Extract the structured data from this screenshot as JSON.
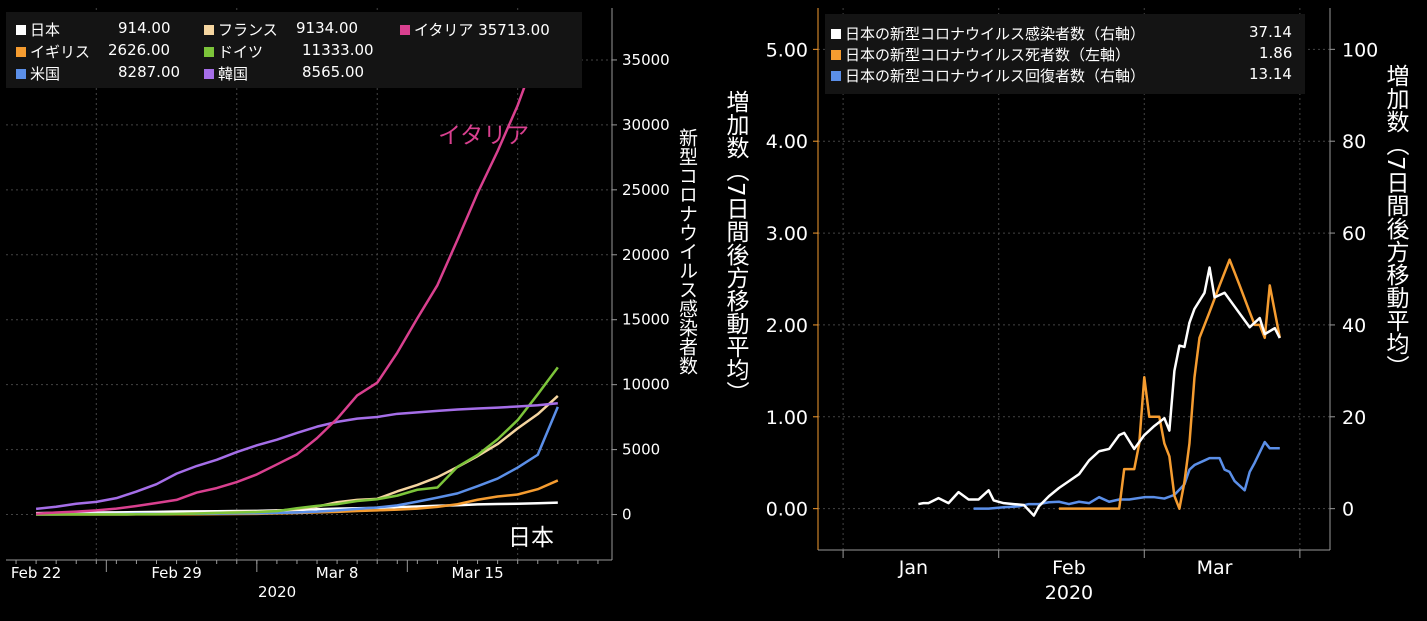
{
  "chart_data": [
    {
      "type": "line",
      "x_axis": {
        "ticks": [
          "Feb 22",
          "Feb 29",
          "Mar 8",
          "Mar 15"
        ],
        "year": "2020"
      },
      "y_axis": {
        "label": "新型コロナウイルス感染者数",
        "ticks": [
          "0",
          "5000",
          "10000",
          "15000",
          "20000",
          "25000",
          "30000",
          "35000"
        ],
        "ylim": [
          -3500,
          39000
        ]
      },
      "xlim": [
        -1.5,
        28.7
      ],
      "legend": [
        {
          "name": "日本",
          "value": "914.00",
          "color": "#ffffff"
        },
        {
          "name": "イギリス",
          "value": "2626.00",
          "color": "#f59c30"
        },
        {
          "name": "米国",
          "value": "8287.00",
          "color": "#5b8fe8"
        },
        {
          "name": "フランス",
          "value": "9134.00",
          "color": "#f5d5a0"
        },
        {
          "name": "ドイツ",
          "value": "11333.00",
          "color": "#7cc43a"
        },
        {
          "name": "韓国",
          "value": "8565.00",
          "color": "#a56ee8"
        },
        {
          "name": "イタリア",
          "value": "35713.00",
          "color": "#d9408f"
        }
      ],
      "annotations": {
        "italy": "イタリア",
        "japan": "日本"
      },
      "series": [
        {
          "name": "日本",
          "color": "#ffffff",
          "values": [
            105,
            132,
            144,
            157,
            164,
            186,
            210,
            230,
            239,
            254,
            268,
            284,
            317,
            349,
            408,
            455,
            488,
            514,
            568,
            620,
            675,
            716,
            780,
            814,
            829,
            873,
            914
          ]
        },
        {
          "name": "イギリス",
          "color": "#f59c30",
          "values": [
            9,
            13,
            13,
            13,
            13,
            13,
            15,
            20,
            23,
            36,
            40,
            51,
            85,
            115,
            163,
            206,
            273,
            321,
            382,
            456,
            590,
            798,
            1140,
            1391,
            1543,
            1950,
            2626
          ]
        },
        {
          "name": "米国",
          "color": "#5b8fe8",
          "values": [
            15,
            15,
            35,
            35,
            35,
            53,
            57,
            60,
            62,
            70,
            88,
            104,
            124,
            158,
            221,
            319,
            435,
            541,
            704,
            994,
            1301,
            1630,
            2183,
            2770,
            3617,
            4604,
            8287
          ]
        },
        {
          "name": "フランス",
          "color": "#f5d5a0",
          "values": [
            12,
            12,
            12,
            12,
            14,
            18,
            38,
            57,
            100,
            130,
            191,
            212,
            285,
            423,
            613,
            949,
            1126,
            1209,
            1784,
            2281,
            2876,
            3661,
            4499,
            5423,
            6633,
            7730,
            9134
          ]
        },
        {
          "name": "ドイツ",
          "color": "#7cc43a",
          "values": [
            16,
            16,
            16,
            16,
            16,
            18,
            26,
            48,
            79,
            130,
            159,
            196,
            262,
            482,
            670,
            799,
            1040,
            1176,
            1457,
            1908,
            2078,
            3675,
            4585,
            5795,
            7272,
            9257,
            11333
          ]
        },
        {
          "name": "韓国",
          "color": "#a56ee8",
          "values": [
            433,
            602,
            833,
            977,
            1261,
            1766,
            2337,
            3150,
            3736,
            4212,
            4812,
            5328,
            5766,
            6284,
            6767,
            7134,
            7382,
            7513,
            7755,
            7869,
            7979,
            8086,
            8162,
            8236,
            8320,
            8413,
            8565
          ]
        },
        {
          "name": "イタリア",
          "color": "#d9408f",
          "values": [
            62,
            155,
            229,
            322,
            453,
            655,
            888,
            1128,
            1694,
            2036,
            2502,
            3089,
            3858,
            4636,
            5883,
            7375,
            9172,
            10149,
            12462,
            15113,
            17660,
            21157,
            24747,
            27980,
            31506,
            35713,
            35713
          ]
        }
      ]
    },
    {
      "type": "line",
      "x_axis": {
        "ticks": [
          "Jan",
          "Feb",
          "Mar"
        ],
        "year": "2020"
      },
      "y_left": {
        "label": "増加数（7日間後方移動平均）",
        "ticks": [
          "0.00",
          "1.00",
          "2.00",
          "3.00",
          "4.00",
          "5.00"
        ],
        "ylim": [
          -0.45,
          5.45
        ],
        "color": "#f59c30"
      },
      "y_right": {
        "label": "増加数（7日間後方移動平均）",
        "ticks": [
          "0",
          "20",
          "40",
          "60",
          "80",
          "100"
        ],
        "ylim": [
          -9,
          109
        ]
      },
      "legend": [
        {
          "name": "日本の新型コロナウイルス感染者数（右軸）",
          "value": "37.14",
          "color": "#ffffff"
        },
        {
          "name": "日本の新型コロナウイルス死者数（左軸）",
          "value": "1.86",
          "color": "#f59c30"
        },
        {
          "name": "日本の新型コロナウイルス回復者数（右軸）",
          "value": "13.14",
          "color": "#5b8fe8"
        }
      ],
      "series": [
        {
          "name": "日本の新型コロナウイルス感染者数（右軸）",
          "axis": "right",
          "color": "#ffffff",
          "points": [
            [
              "2020-01-16",
              1
            ],
            [
              "2020-01-17",
              1.2
            ],
            [
              "2020-01-18",
              1.2
            ],
            [
              "2020-01-20",
              2.3
            ],
            [
              "2020-01-22",
              1.2
            ],
            [
              "2020-01-24",
              3.6
            ],
            [
              "2020-01-26",
              2
            ],
            [
              "2020-01-28",
              2
            ],
            [
              "2020-01-30",
              4
            ],
            [
              "2020-01-31",
              1.8
            ],
            [
              "2020-02-02",
              1.2
            ],
            [
              "2020-02-04",
              1
            ],
            [
              "2020-02-06",
              0.8
            ],
            [
              "2020-02-08",
              -1.5
            ],
            [
              "2020-02-09",
              0.5
            ],
            [
              "2020-02-11",
              2.7
            ],
            [
              "2020-02-13",
              4.5
            ],
            [
              "2020-02-15",
              6
            ],
            [
              "2020-02-17",
              7.5
            ],
            [
              "2020-02-19",
              10.5
            ],
            [
              "2020-02-21",
              12.5
            ],
            [
              "2020-02-23",
              13
            ],
            [
              "2020-02-25",
              16
            ],
            [
              "2020-02-26",
              16.5
            ],
            [
              "2020-02-28",
              13
            ],
            [
              "2020-03-01",
              16
            ],
            [
              "2020-03-03",
              18
            ],
            [
              "2020-03-05",
              19.7
            ],
            [
              "2020-03-06",
              17
            ],
            [
              "2020-03-07",
              30
            ],
            [
              "2020-03-08",
              35.5
            ],
            [
              "2020-03-09",
              35.2
            ],
            [
              "2020-03-10",
              40.5
            ],
            [
              "2020-03-11",
              43.5
            ],
            [
              "2020-03-13",
              47
            ],
            [
              "2020-03-14",
              52.5
            ],
            [
              "2020-03-15",
              46
            ],
            [
              "2020-03-17",
              47
            ],
            [
              "2020-03-19",
              44
            ],
            [
              "2020-03-22",
              39.5
            ],
            [
              "2020-03-24",
              41.5
            ],
            [
              "2020-03-25",
              38
            ],
            [
              "2020-03-27",
              39.3
            ],
            [
              "2020-03-28",
              37.14
            ]
          ]
        },
        {
          "name": "日本の新型コロナウイルス死者数（左軸）",
          "axis": "left",
          "color": "#f59c30",
          "points": [
            [
              "2020-02-13",
              0
            ],
            [
              "2020-02-25",
              0
            ],
            [
              "2020-02-26",
              0.43
            ],
            [
              "2020-02-28",
              0.43
            ],
            [
              "2020-02-29",
              0.71
            ],
            [
              "2020-03-01",
              1.43
            ],
            [
              "2020-03-02",
              1
            ],
            [
              "2020-03-04",
              1
            ],
            [
              "2020-03-05",
              0.71
            ],
            [
              "2020-03-06",
              0.57
            ],
            [
              "2020-03-07",
              0.14
            ],
            [
              "2020-03-08",
              0
            ],
            [
              "2020-03-09",
              0.29
            ],
            [
              "2020-03-10",
              0.71
            ],
            [
              "2020-03-11",
              1.43
            ],
            [
              "2020-03-12",
              1.86
            ],
            [
              "2020-03-14",
              2.14
            ],
            [
              "2020-03-16",
              2.43
            ],
            [
              "2020-03-18",
              2.71
            ],
            [
              "2020-03-20",
              2.43
            ],
            [
              "2020-03-22",
              2.14
            ],
            [
              "2020-03-23",
              2
            ],
            [
              "2020-03-24",
              2
            ],
            [
              "2020-03-25",
              1.86
            ],
            [
              "2020-03-26",
              2.43
            ],
            [
              "2020-03-28",
              1.86
            ]
          ]
        },
        {
          "name": "日本の新型コロナウイルス回復者数（右軸）",
          "axis": "right",
          "color": "#5b8fe8",
          "points": [
            [
              "2020-01-27",
              0
            ],
            [
              "2020-01-30",
              0
            ],
            [
              "2020-02-02",
              0.3
            ],
            [
              "2020-02-05",
              0.5
            ],
            [
              "2020-02-07",
              1
            ],
            [
              "2020-02-09",
              1
            ],
            [
              "2020-02-11",
              1.4
            ],
            [
              "2020-02-13",
              1.5
            ],
            [
              "2020-02-15",
              1
            ],
            [
              "2020-02-17",
              1.5
            ],
            [
              "2020-02-19",
              1.2
            ],
            [
              "2020-02-21",
              2.5
            ],
            [
              "2020-02-23",
              1.5
            ],
            [
              "2020-02-25",
              2
            ],
            [
              "2020-02-27",
              2
            ],
            [
              "2020-03-01",
              2.5
            ],
            [
              "2020-03-03",
              2.5
            ],
            [
              "2020-03-05",
              2.2
            ],
            [
              "2020-03-07",
              3
            ],
            [
              "2020-03-09",
              5.3
            ],
            [
              "2020-03-10",
              8.5
            ],
            [
              "2020-03-11",
              9.5
            ],
            [
              "2020-03-13",
              10.5
            ],
            [
              "2020-03-14",
              11
            ],
            [
              "2020-03-16",
              11
            ],
            [
              "2020-03-17",
              8.5
            ],
            [
              "2020-03-18",
              8
            ],
            [
              "2020-03-19",
              6
            ],
            [
              "2020-03-21",
              4
            ],
            [
              "2020-03-22",
              8
            ],
            [
              "2020-03-23",
              10
            ],
            [
              "2020-03-25",
              14.5
            ],
            [
              "2020-03-26",
              13.14
            ],
            [
              "2020-03-28",
              13.14
            ]
          ]
        }
      ]
    }
  ]
}
